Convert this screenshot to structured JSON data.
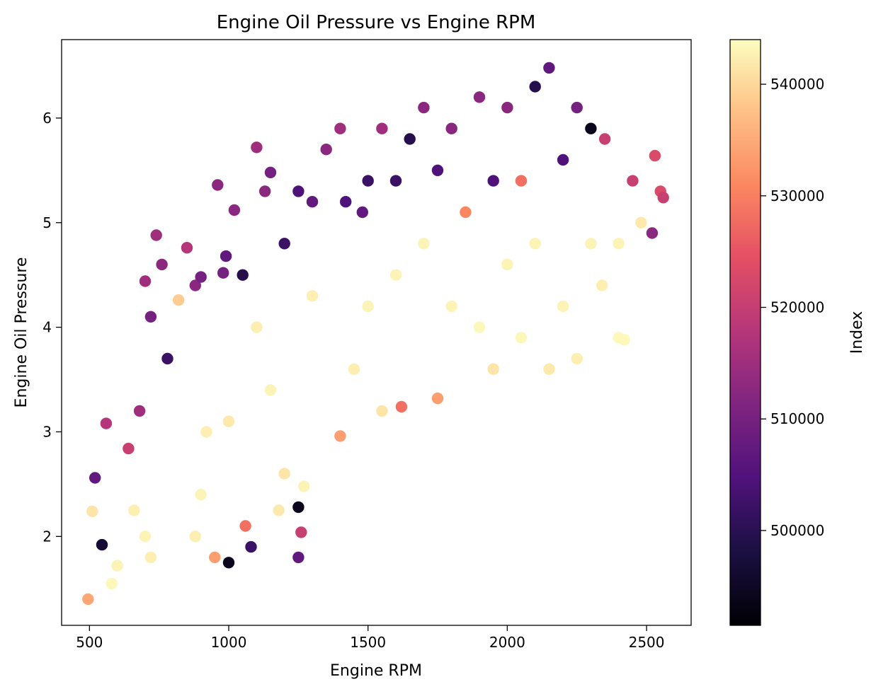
{
  "chart_data": {
    "type": "scatter",
    "title": "Engine Oil Pressure vs Engine RPM",
    "xlabel": "Engine RPM",
    "ylabel": "Engine Oil Pressure",
    "xlim": [
      400,
      2660
    ],
    "ylim": [
      1.15,
      6.75
    ],
    "xticks": [
      500,
      1000,
      1500,
      2000,
      2500
    ],
    "yticks": [
      2,
      3,
      4,
      5,
      6
    ],
    "grid": false,
    "colormap": "magma",
    "colorbar": {
      "label": "Index",
      "range": [
        491500,
        544000
      ],
      "ticks": [
        500000,
        510000,
        520000,
        530000,
        540000
      ]
    },
    "point_color_bright": "#fcfdbf",
    "point_color_dark": "#000004",
    "points": [
      [
        495,
        1.4,
        0.82
      ],
      [
        520,
        2.56,
        0.3
      ],
      [
        510,
        2.24,
        0.95
      ],
      [
        560,
        3.08,
        0.5
      ],
      [
        545,
        1.92,
        0.1
      ],
      [
        580,
        1.55,
        0.99
      ],
      [
        600,
        1.72,
        0.98
      ],
      [
        640,
        2.84,
        0.55
      ],
      [
        660,
        2.25,
        0.97
      ],
      [
        700,
        2.0,
        0.98
      ],
      [
        720,
        1.8,
        0.97
      ],
      [
        680,
        3.2,
        0.45
      ],
      [
        700,
        4.44,
        0.45
      ],
      [
        720,
        4.1,
        0.35
      ],
      [
        740,
        4.88,
        0.45
      ],
      [
        760,
        4.6,
        0.4
      ],
      [
        780,
        3.7,
        0.2
      ],
      [
        820,
        4.26,
        0.9
      ],
      [
        850,
        4.76,
        0.5
      ],
      [
        880,
        4.4,
        0.4
      ],
      [
        900,
        4.48,
        0.35
      ],
      [
        880,
        2.0,
        0.97
      ],
      [
        900,
        2.4,
        0.98
      ],
      [
        920,
        3.0,
        0.97
      ],
      [
        950,
        1.8,
        0.8
      ],
      [
        960,
        5.36,
        0.4
      ],
      [
        980,
        4.52,
        0.35
      ],
      [
        990,
        4.68,
        0.3
      ],
      [
        1000,
        3.1,
        0.96
      ],
      [
        1000,
        1.75,
        0.05
      ],
      [
        1020,
        5.12,
        0.4
      ],
      [
        1050,
        4.5,
        0.15
      ],
      [
        1060,
        2.1,
        0.7
      ],
      [
        1080,
        1.9,
        0.2
      ],
      [
        1100,
        4.0,
        0.97
      ],
      [
        1100,
        5.72,
        0.45
      ],
      [
        1130,
        5.3,
        0.4
      ],
      [
        1150,
        5.48,
        0.35
      ],
      [
        1150,
        3.4,
        0.98
      ],
      [
        1180,
        2.25,
        0.96
      ],
      [
        1200,
        2.6,
        0.95
      ],
      [
        1200,
        4.8,
        0.2
      ],
      [
        1250,
        5.3,
        0.25
      ],
      [
        1250,
        2.28,
        0.05
      ],
      [
        1250,
        1.8,
        0.3
      ],
      [
        1260,
        2.04,
        0.55
      ],
      [
        1270,
        2.48,
        0.98
      ],
      [
        1300,
        5.2,
        0.3
      ],
      [
        1300,
        4.3,
        0.97
      ],
      [
        1350,
        5.7,
        0.4
      ],
      [
        1400,
        5.9,
        0.45
      ],
      [
        1420,
        5.2,
        0.25
      ],
      [
        1400,
        2.96,
        0.8
      ],
      [
        1450,
        3.6,
        0.97
      ],
      [
        1480,
        5.1,
        0.3
      ],
      [
        1500,
        4.2,
        0.98
      ],
      [
        1500,
        5.4,
        0.2
      ],
      [
        1550,
        3.2,
        0.95
      ],
      [
        1550,
        5.9,
        0.45
      ],
      [
        1600,
        4.5,
        0.98
      ],
      [
        1600,
        5.4,
        0.2
      ],
      [
        1620,
        3.24,
        0.7
      ],
      [
        1650,
        5.8,
        0.15
      ],
      [
        1700,
        6.1,
        0.4
      ],
      [
        1700,
        4.8,
        0.98
      ],
      [
        1750,
        3.32,
        0.8
      ],
      [
        1750,
        5.5,
        0.25
      ],
      [
        1800,
        4.2,
        0.98
      ],
      [
        1800,
        5.9,
        0.4
      ],
      [
        1850,
        5.1,
        0.75
      ],
      [
        1900,
        4.0,
        0.99
      ],
      [
        1900,
        6.2,
        0.4
      ],
      [
        1950,
        3.6,
        0.95
      ],
      [
        1950,
        5.4,
        0.25
      ],
      [
        2000,
        4.6,
        0.98
      ],
      [
        2000,
        6.1,
        0.4
      ],
      [
        2050,
        3.9,
        0.99
      ],
      [
        2050,
        5.4,
        0.7
      ],
      [
        2100,
        4.8,
        0.98
      ],
      [
        2100,
        6.3,
        0.15
      ],
      [
        2150,
        6.48,
        0.3
      ],
      [
        2150,
        3.6,
        0.96
      ],
      [
        2200,
        4.2,
        0.98
      ],
      [
        2200,
        5.6,
        0.25
      ],
      [
        2250,
        6.1,
        0.35
      ],
      [
        2250,
        3.7,
        0.97
      ],
      [
        2300,
        4.8,
        0.98
      ],
      [
        2300,
        5.9,
        0.05
      ],
      [
        2340,
        4.4,
        0.97
      ],
      [
        2350,
        5.8,
        0.55
      ],
      [
        2400,
        3.9,
        0.99
      ],
      [
        2400,
        4.8,
        0.98
      ],
      [
        2420,
        3.88,
        0.99
      ],
      [
        2450,
        5.4,
        0.55
      ],
      [
        2480,
        5.0,
        0.96
      ],
      [
        2520,
        4.9,
        0.4
      ],
      [
        2530,
        5.64,
        0.6
      ],
      [
        2550,
        5.3,
        0.6
      ],
      [
        2560,
        5.24,
        0.55
      ]
    ]
  }
}
